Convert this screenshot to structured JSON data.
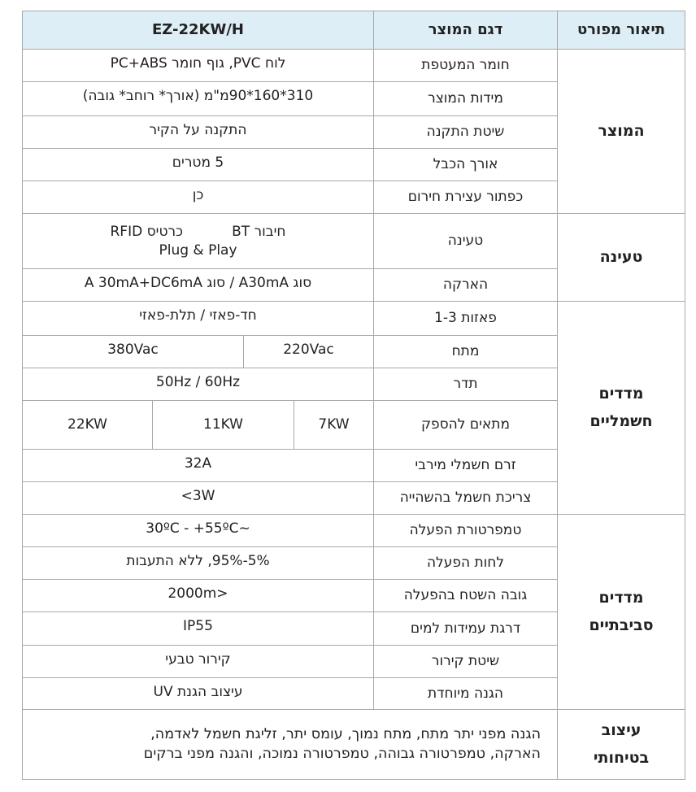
{
  "header": {
    "description": "תיאור מפורט",
    "model_label": "דגם המוצר",
    "model": "EZ-22KW/H"
  },
  "groups": {
    "product": {
      "title": "המוצר",
      "rows": [
        {
          "name": "חומר המעטפת",
          "value": "לוח PVC, גוף חומר PC+ABS"
        },
        {
          "name": "מידות המוצר",
          "value": "310*160*90מ\"מ (אורך* רוחב* גובה)"
        },
        {
          "name": "שיטת התקנה",
          "value": "התקנה על הקיר"
        },
        {
          "name": "אורך הכבל",
          "value": "5 מטרים"
        },
        {
          "name": "כפתור עצירת חירום",
          "value": "כן"
        }
      ]
    },
    "charging": {
      "title": "טעינה",
      "rows": [
        {
          "name": "טעינה",
          "value_a": "חיבור BT",
          "value_b": "כרטיס RFID",
          "value_c": "Plug & Play"
        },
        {
          "name": "הארקה",
          "value": "סוג A30mA / סוג A 30mA+DC6mA"
        }
      ]
    },
    "electrical": {
      "title_1": "מדדים",
      "title_2": "חשמליים",
      "rows": [
        {
          "name": "פאזות 1-3",
          "value": "חד-פאזי / תלת-פאזי"
        },
        {
          "name": "מתח",
          "values": [
            "220Vac",
            "380Vac"
          ]
        },
        {
          "name": "תדר",
          "value": "50Hz / 60Hz"
        },
        {
          "name": "מתאים להספק",
          "values": [
            "7KW",
            "11KW",
            "22KW"
          ]
        },
        {
          "name": "זרם חשמלי מירבי",
          "value": "32A"
        },
        {
          "name": "צריכת חשמל בהשהייה",
          "value": "3W>"
        }
      ]
    },
    "environmental": {
      "title_1": "מדדים",
      "title_2": "סביבתיים",
      "rows": [
        {
          "name": "טמפרטורת הפעלה",
          "value": "~30ºC - +55ºC"
        },
        {
          "name": "לחות הפעלה",
          "value": "5%-95%, ללא התעבות"
        },
        {
          "name": "גובה השטח בהפעלה",
          "value": "<2000m"
        },
        {
          "name": "דרגת עמידות למים",
          "value": "IP55"
        },
        {
          "name": "שיטת קירור",
          "value": "קירור טבעי"
        },
        {
          "name": "הגנה מיוחדת",
          "value": "עיצוב הגנת UV"
        }
      ]
    },
    "safety": {
      "title_1": "עיצוב",
      "title_2": "בטיחותי",
      "line_1": "הגנה מפני יתר מתח, מתח נמוך, עומס יתר, זליגת חשמל לאדמה,",
      "line_2": "הארקה, טמפרטורה גבוהה, טמפרטורה נמוכה, והגנה מפני ברקים"
    }
  }
}
